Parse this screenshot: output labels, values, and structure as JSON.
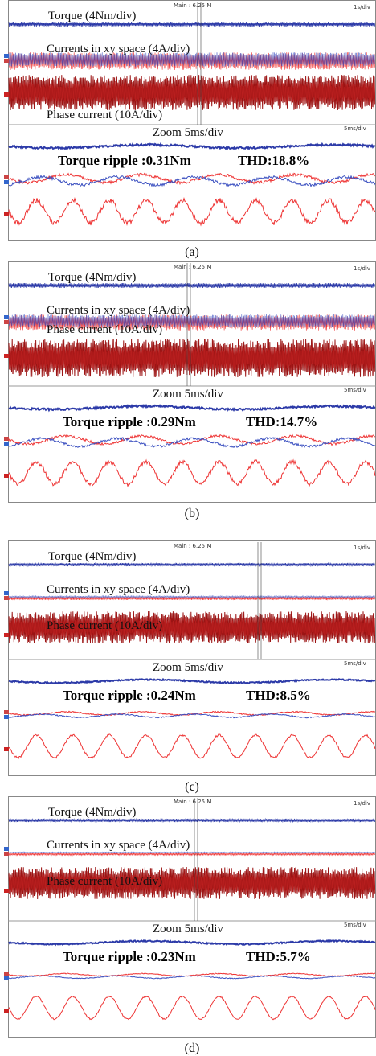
{
  "panels": [
    {
      "header": "Main : 6.25 M",
      "timebase": "1s/div",
      "torque_label": "Torque (4Nm/div)",
      "xy_label": "Currents in xy space (4A/div)",
      "phase_label": "Phase current (10A/div)",
      "zoom_label": "Zoom  5ms/div",
      "zoom_timebase": "5ms/div",
      "ripple": "Torque ripple :0.31Nm",
      "thd": "THD:18.8%",
      "caption": "(a)"
    },
    {
      "header": "Main : 6.25 M",
      "timebase": "1s/div",
      "torque_label": "Torque (4Nm/div)",
      "xy_label": "Currents in xy space (4A/div)",
      "phase_label": "Phase current (10A/div)",
      "zoom_label": "Zoom  5ms/div",
      "zoom_timebase": "5ms/div",
      "ripple": "Torque ripple :0.29Nm",
      "thd": "THD:14.7%",
      "caption": "(b)"
    },
    {
      "header": "Main : 6.25 M",
      "timebase": "1s/div",
      "torque_label": "Torque (4Nm/div)",
      "xy_label": "Currents in xy space (4A/div)",
      "phase_label": "Phase current (10A/div)",
      "zoom_label": "Zoom  5ms/div",
      "zoom_timebase": "5ms/div",
      "ripple": "Torque ripple :0.24Nm",
      "thd": "THD:8.5%",
      "caption": "(c)"
    },
    {
      "header": "Main : 6.25 M",
      "timebase": "1s/div",
      "torque_label": "Torque (4Nm/div)",
      "xy_label": "Currents in xy space (4A/div)",
      "phase_label": "Phase current (10A/div)",
      "zoom_label": "Zoom  5ms/div",
      "zoom_timebase": "5ms/div",
      "ripple": "Torque ripple :0.23Nm",
      "thd": "THD:5.7%",
      "caption": "(d)"
    }
  ]
}
